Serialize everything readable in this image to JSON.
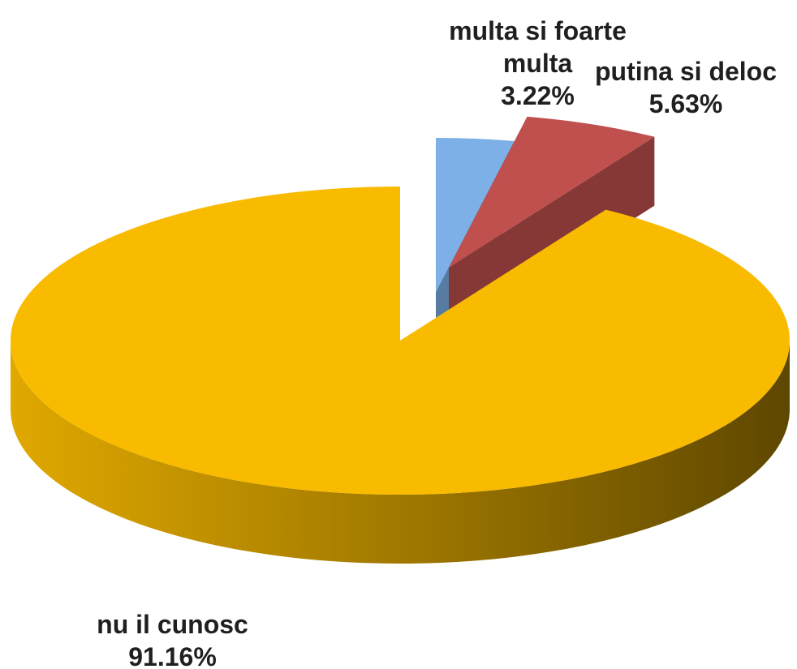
{
  "chart_data": {
    "type": "pie",
    "categories": [
      "multa si foarte multa",
      "putina si deloc",
      "nu il cunosc"
    ],
    "values": [
      3.22,
      5.63,
      91.16
    ],
    "value_labels": [
      "3.22%",
      "5.63%",
      "91.16%"
    ],
    "colors": [
      "#7cb0e6",
      "#c0504d",
      "#f9bb00"
    ]
  }
}
